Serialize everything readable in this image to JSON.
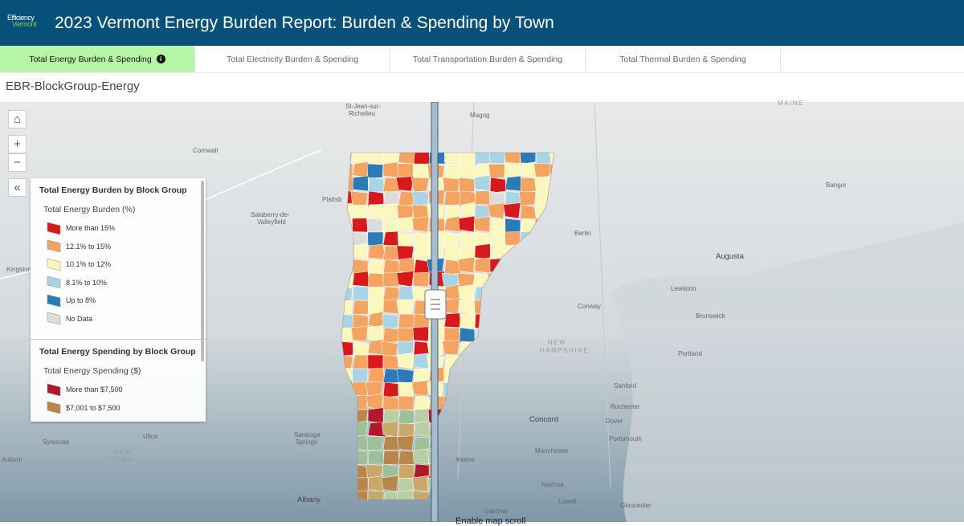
{
  "header": {
    "logo": [
      "Efficiency",
      "Vermont"
    ],
    "title": "2023 Vermont Energy Burden Report: Burden & Spending by Town"
  },
  "tabs": [
    {
      "label": "Total Energy Burden & Spending",
      "active": true
    },
    {
      "label": "Total Electricity Burden & Spending",
      "active": false
    },
    {
      "label": "Total Transportation Burden & Spending",
      "active": false
    },
    {
      "label": "Total Thermal Burden & Spending",
      "active": false
    }
  ],
  "layer_title": "EBR-BlockGroup-Energy",
  "legend": {
    "sections": [
      {
        "title": "Total Energy Burden by Block Group",
        "subtitle": "Total Energy Burden (%)",
        "items": [
          {
            "label": "More than 15%",
            "color": "#d7191c"
          },
          {
            "label": "12.1% to 15%",
            "color": "#f4a460"
          },
          {
            "label": "10.1% to 12%",
            "color": "#fbf7bd"
          },
          {
            "label": "8.1% to 10%",
            "color": "#a8d4e6"
          },
          {
            "label": "Up to 8%",
            "color": "#2c7bb6"
          },
          {
            "label": "No Data",
            "color": "#dcdcdc"
          }
        ]
      },
      {
        "title": "Total Energy Spending by Block Group",
        "subtitle": "Total Energy Spending ($)",
        "items": [
          {
            "label": "More than $7,500",
            "color": "#b2182b"
          },
          {
            "label": "$7,001 to $7,500",
            "color": "#b8864b"
          }
        ]
      }
    ]
  },
  "map_labels": [
    "Salaberry-de-",
    "Valleyfield",
    "St-Jean-sur-",
    "Richelieu",
    "Magog",
    "MAINE",
    "Cornwall",
    "Plattsb",
    "Kingston",
    "Berlin",
    "Augusta",
    "Bangor",
    "Lewiston",
    "Conway",
    "Brunswick",
    "NEW",
    "HAMPSHIRE",
    "Portland",
    "Sanford",
    "Rochester",
    "Dover",
    "Portsmouth",
    "Concord",
    "Manchester",
    "Keene",
    "Nashua",
    "Lowell",
    "Gloucester",
    "Gardner",
    "Albany",
    "Saratoga",
    "Springs",
    "Utica",
    "Syracuse",
    "Auburn",
    "NEW",
    "YORK",
    "Enable map scroll"
  ]
}
